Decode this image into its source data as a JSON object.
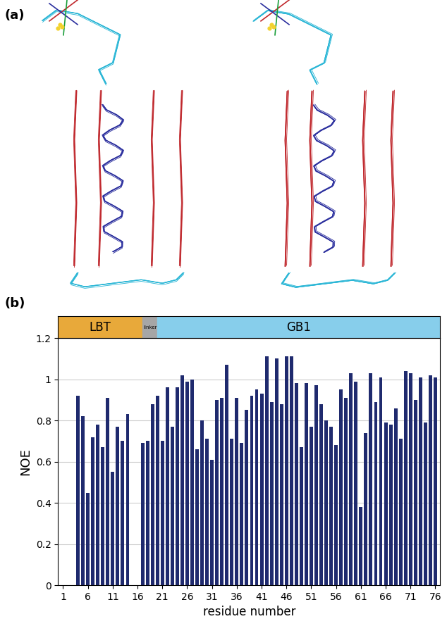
{
  "panel_labels": [
    "(a)",
    "(b)"
  ],
  "domains": [
    {
      "label": "LBT",
      "start": 0,
      "end": 17,
      "color": "#e8a93a"
    },
    {
      "label": "linker",
      "start": 17,
      "end": 20,
      "color": "#a6a6a6"
    },
    {
      "label": "GB1",
      "start": 20,
      "end": 77,
      "color": "#87ceeb"
    }
  ],
  "chart_data": {
    "type": "bar",
    "x_label": "residue number",
    "y_label": "NOE",
    "x": [
      1,
      2,
      3,
      4,
      5,
      6,
      7,
      8,
      9,
      10,
      11,
      12,
      13,
      14,
      15,
      16,
      17,
      18,
      19,
      20,
      21,
      22,
      23,
      24,
      25,
      26,
      27,
      28,
      29,
      30,
      31,
      32,
      33,
      34,
      35,
      36,
      37,
      38,
      39,
      40,
      41,
      42,
      43,
      44,
      45,
      46,
      47,
      48,
      49,
      50,
      51,
      52,
      53,
      54,
      55,
      56,
      57,
      58,
      59,
      60,
      61,
      62,
      63,
      64,
      65,
      66,
      67,
      68,
      69,
      70,
      71,
      72,
      73,
      74,
      75,
      76
    ],
    "values": [
      null,
      null,
      null,
      0.92,
      0.82,
      0.45,
      0.72,
      0.78,
      0.67,
      0.91,
      0.55,
      0.77,
      0.7,
      0.83,
      null,
      null,
      0.69,
      0.7,
      0.88,
      0.92,
      0.7,
      0.96,
      0.77,
      0.96,
      1.02,
      0.99,
      1.0,
      0.66,
      0.8,
      0.71,
      0.61,
      0.9,
      0.91,
      1.07,
      0.71,
      0.91,
      0.69,
      0.85,
      0.92,
      0.95,
      0.93,
      1.11,
      0.89,
      1.1,
      0.88,
      1.11,
      1.11,
      0.98,
      0.67,
      0.98,
      0.77,
      0.97,
      0.88,
      0.8,
      0.77,
      0.68,
      0.95,
      0.91,
      1.03,
      0.99,
      0.38,
      0.74,
      1.03,
      0.89,
      1.01,
      0.79,
      0.78,
      0.86,
      0.71,
      1.04,
      1.03,
      0.9,
      1.01,
      0.79,
      1.02,
      1.01
    ],
    "color": "#1f2a6e",
    "xlim": [
      0,
      77
    ],
    "xticks": [
      1,
      6,
      11,
      16,
      21,
      26,
      31,
      36,
      41,
      46,
      51,
      56,
      61,
      66,
      71,
      76
    ],
    "ylim": [
      0,
      1.2
    ],
    "yticks": [
      0,
      0.2,
      0.4,
      0.6,
      0.8,
      1,
      1.2
    ],
    "grid": true
  }
}
